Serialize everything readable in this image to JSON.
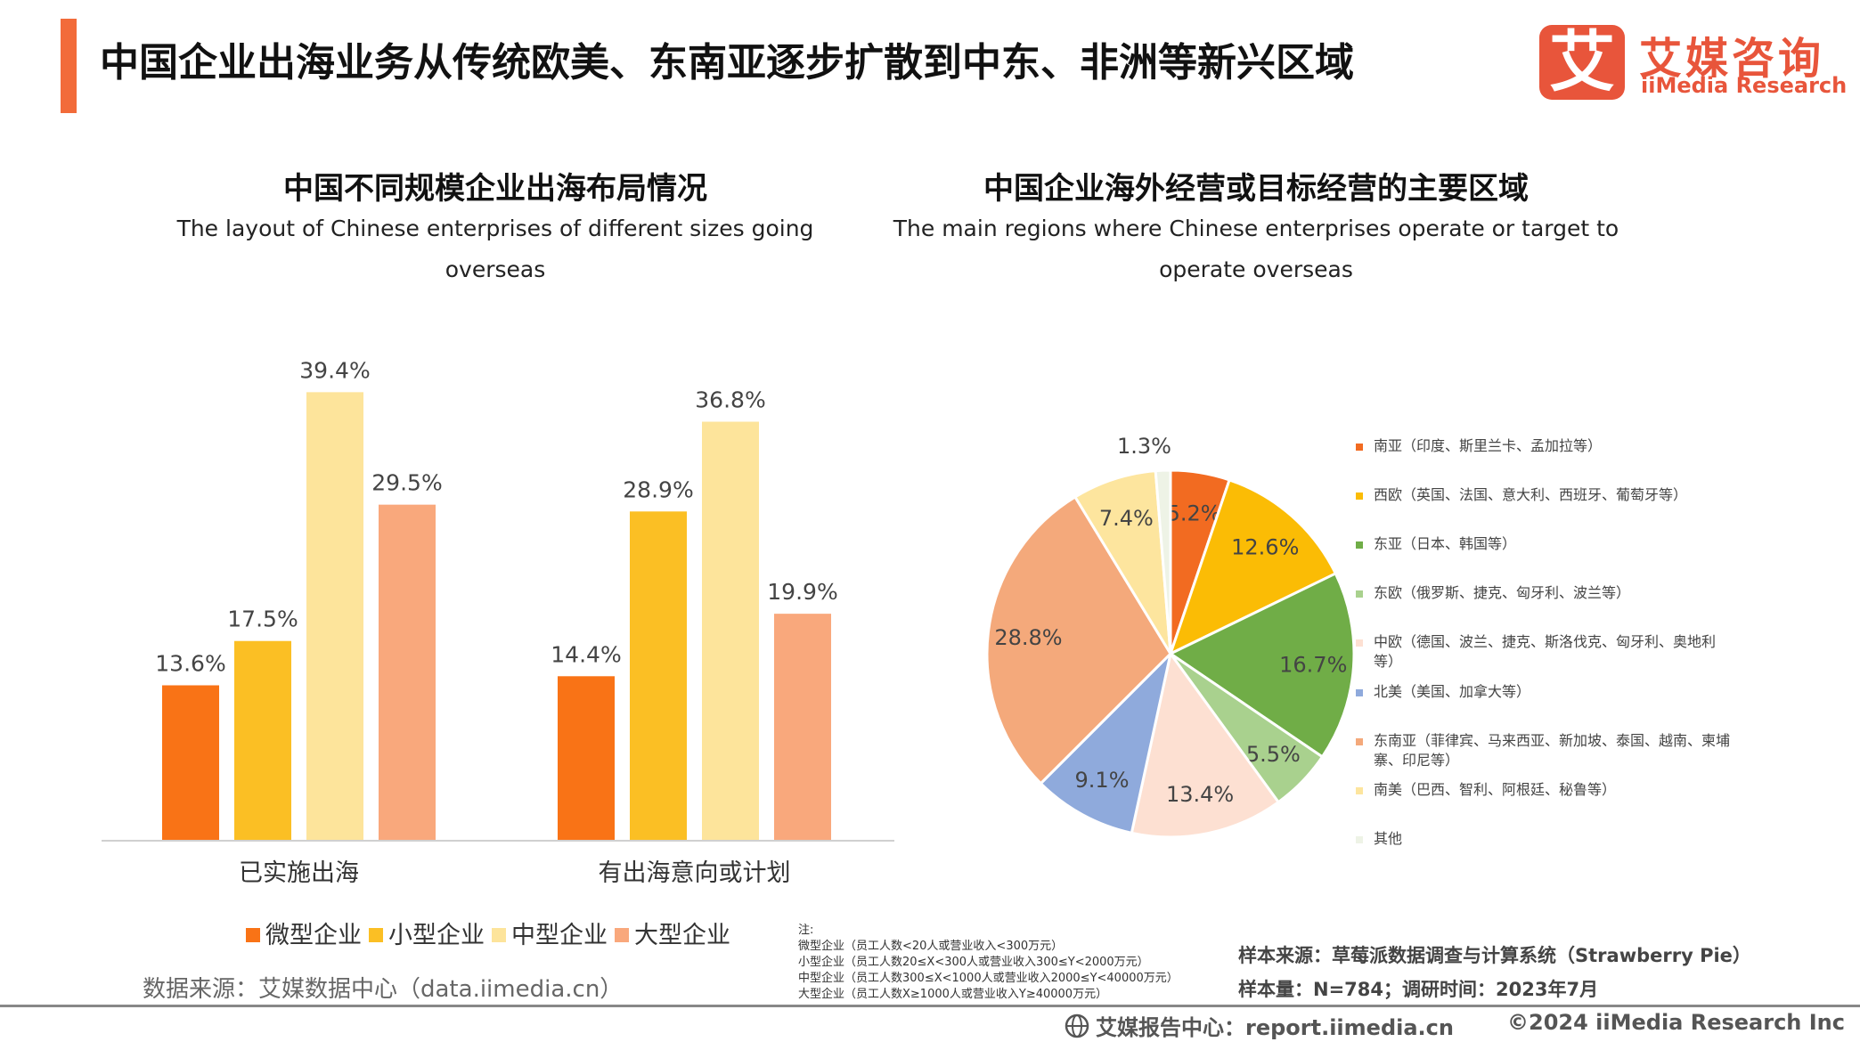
{
  "header": {
    "title": "中国企业出海业务从传统欧美、东南亚逐步扩散到中东、非洲等新兴区域",
    "logo_mark": "艾",
    "logo_cn": "艾媒咨询",
    "logo_en": "iiMedia Research",
    "accent_color": "#f26b3a"
  },
  "chart_data": [
    {
      "type": "bar",
      "title": "中国不同规模企业出海布局情况",
      "subtitle": "The layout of Chinese enterprises of different sizes going overseas",
      "categories": [
        "已实施出海",
        "有出海意向或计划"
      ],
      "series": [
        {
          "name": "微型企业",
          "color": "#f97316",
          "values": [
            13.6,
            14.4
          ]
        },
        {
          "name": "小型企业",
          "color": "#fbbf24",
          "values": [
            17.5,
            28.9
          ]
        },
        {
          "name": "中型企业",
          "color": "#fde49b",
          "values": [
            39.4,
            36.8
          ]
        },
        {
          "name": "大型企业",
          "color": "#f9a87c",
          "values": [
            29.5,
            19.9
          ]
        }
      ],
      "value_suffix": "%",
      "ylim": [
        0,
        45
      ],
      "legend_position": "bottom"
    },
    {
      "type": "pie",
      "title": "中国企业海外经营或目标经营的主要区域",
      "subtitle": "The main regions where Chinese enterprises operate or target to operate overseas",
      "value_suffix": "%",
      "legend_position": "right",
      "slices": [
        {
          "name": "南亚（印度、斯里兰卡、孟加拉等）",
          "value": 5.2,
          "color": "#f26b21"
        },
        {
          "name": "西欧（英国、法国、意大利、西班牙、葡萄牙等）",
          "value": 12.6,
          "color": "#fbbc05"
        },
        {
          "name": "东亚（日本、韩国等）",
          "value": 16.7,
          "color": "#70ad47"
        },
        {
          "name": "东欧（俄罗斯、捷克、匈牙利、波兰等）",
          "value": 5.5,
          "color": "#a9d18e"
        },
        {
          "name": "中欧（德国、波兰、捷克、斯洛伐克、匈牙利、奥地利等）",
          "value": 13.4,
          "color": "#fde0d2"
        },
        {
          "name": "北美（美国、加拿大等）",
          "value": 9.1,
          "color": "#8faadc"
        },
        {
          "name": "东南亚（菲律宾、马来西亚、新加坡、泰国、越南、柬埔寨、印尼等）",
          "value": 28.8,
          "color": "#f4a97b"
        },
        {
          "name": "南美（巴西、智利、阿根廷、秘鲁等）",
          "value": 7.4,
          "color": "#fde59e"
        },
        {
          "name": "其他",
          "value": 1.3,
          "color": "#eef3e6"
        }
      ]
    }
  ],
  "footer": {
    "source": "数据来源：艾媒数据中心（data.iimedia.cn）",
    "notes": [
      "注:",
      "微型企业（员工人数<20人或营业收入<300万元）",
      "小型企业（员工人数20≤X<300人或营业收入300≤Y<2000万元）",
      "中型企业（员工人数300≤X<1000人或营业收入2000≤Y<40000万元）",
      "大型企业（员工人数X≥1000人或营业收入Y≥40000万元）"
    ],
    "sample_source": "样本来源：草莓派数据调查与计算系统（Strawberry Pie）",
    "sample_size": "样本量：N=784；调研时间：2023年7月",
    "report_center": "艾媒报告中心：report.iimedia.cn",
    "copyright": "©2024  iiMedia Research  Inc"
  }
}
